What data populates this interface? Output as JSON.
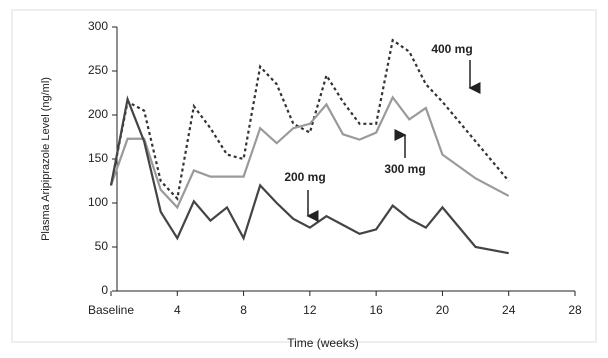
{
  "chart_data": {
    "type": "line",
    "y_label": "Plasma Aripiprazole Level (ng/ml)",
    "x_label": "Time (weeks)",
    "x": [
      0,
      1,
      2,
      3,
      4,
      5,
      6,
      7,
      8,
      9,
      10,
      11,
      12,
      13,
      14,
      15,
      16,
      17,
      18,
      19,
      20,
      22,
      24
    ],
    "series": [
      {
        "name": "400 mg",
        "color": "#333333",
        "dash": "3,3",
        "values": [
          120,
          215,
          205,
          125,
          105,
          210,
          185,
          155,
          150,
          255,
          235,
          190,
          180,
          245,
          215,
          190,
          190,
          285,
          272,
          235,
          215,
          170,
          125
        ]
      },
      {
        "name": "300 mg",
        "color": "#9a9a9a",
        "dash": "",
        "values": [
          120,
          173,
          173,
          115,
          95,
          137,
          130,
          130,
          130,
          185,
          168,
          185,
          190,
          212,
          178,
          172,
          180,
          220,
          195,
          208,
          155,
          128,
          108
        ]
      },
      {
        "name": "200 mg",
        "color": "#444444",
        "dash": "",
        "values": [
          120,
          218,
          170,
          90,
          60,
          102,
          80,
          95,
          60,
          120,
          100,
          82,
          72,
          85,
          75,
          65,
          70,
          97,
          82,
          72,
          95,
          50,
          43
        ]
      }
    ],
    "xlim": [
      0,
      28
    ],
    "xticks": [
      {
        "value": 0,
        "label": "Baseline"
      },
      4,
      8,
      12,
      16,
      20,
      24,
      28
    ],
    "ylim": [
      0,
      300
    ],
    "yticks": [
      0,
      50,
      100,
      150,
      200,
      250,
      300
    ]
  }
}
